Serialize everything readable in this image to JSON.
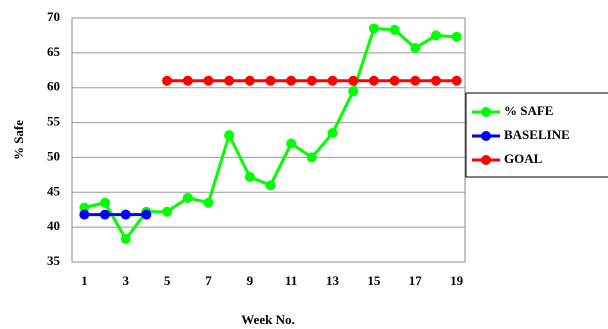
{
  "chart_data": {
    "type": "line",
    "x_label": "Week No.",
    "y_label": "% Safe",
    "categories": [
      "1",
      null,
      "3",
      null,
      "5",
      null,
      "7",
      null,
      "9",
      null,
      "11",
      null,
      "13",
      null,
      "15",
      null,
      "17",
      null,
      "19"
    ],
    "series": [
      {
        "name": "% SAFE",
        "color": "#00ff00",
        "values": [
          42.8,
          43.5,
          38.3,
          42.2,
          42.2,
          44.2,
          43.5,
          53.2,
          47.2,
          46,
          52,
          50,
          53.5,
          59.5,
          68.5,
          68.3,
          65.7,
          67.5,
          67.3
        ]
      },
      {
        "name": "BASELINE",
        "color": "#0000ff",
        "values": [
          41.8,
          41.8,
          41.8,
          41.8,
          null,
          null,
          null,
          null,
          null,
          null,
          null,
          null,
          null,
          null,
          null,
          null,
          null,
          null,
          null
        ]
      },
      {
        "name": "GOAL",
        "color": "#ff0000",
        "values": [
          null,
          null,
          null,
          null,
          61,
          61,
          61,
          61,
          61,
          61,
          61,
          61,
          61,
          61,
          61,
          61,
          61,
          61,
          61
        ]
      }
    ],
    "ylim": [
      35,
      70
    ],
    "yticks": [
      35,
      40,
      45,
      50,
      55,
      60,
      65,
      70
    ],
    "grid": true,
    "legend": "right"
  }
}
